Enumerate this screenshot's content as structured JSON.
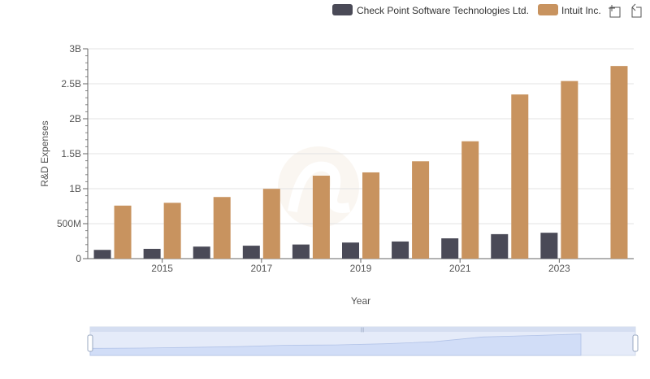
{
  "chart_data": {
    "type": "bar",
    "xlabel": "Year",
    "ylabel": "R&D Expenses",
    "ylim": [
      0,
      3000000000
    ],
    "yticks": [
      {
        "value": 0,
        "label": "0"
      },
      {
        "value": 500000000,
        "label": "500M"
      },
      {
        "value": 1000000000,
        "label": "1B"
      },
      {
        "value": 1500000000,
        "label": "1.5B"
      },
      {
        "value": 2000000000,
        "label": "2B"
      },
      {
        "value": 2500000000,
        "label": "2.5B"
      },
      {
        "value": 3000000000,
        "label": "3B"
      }
    ],
    "categories": [
      "2014",
      "2015",
      "2016",
      "2017",
      "2018",
      "2019",
      "2020",
      "2021",
      "2022",
      "2023",
      "2024"
    ],
    "xtick_labels": [
      "2015",
      "2017",
      "2019",
      "2021",
      "2023"
    ],
    "grid": true,
    "legend_position": "top-right",
    "series": [
      {
        "name": "Check Point Software Technologies Ltd.",
        "color": "#4a4a57",
        "values": [
          125000000,
          140000000,
          172000000,
          185000000,
          202000000,
          230000000,
          245000000,
          290000000,
          350000000,
          370000000,
          null
        ]
      },
      {
        "name": "Intuit Inc.",
        "color": "#c8935f",
        "values": [
          758000000,
          798000000,
          881000000,
          998000000,
          1186000000,
          1233000000,
          1392000000,
          1678000000,
          2347000000,
          2539000000,
          2754000000
        ]
      }
    ]
  },
  "toolbar": {
    "zoom_icon": "zoom-icon",
    "restore_icon": "restore-icon"
  }
}
